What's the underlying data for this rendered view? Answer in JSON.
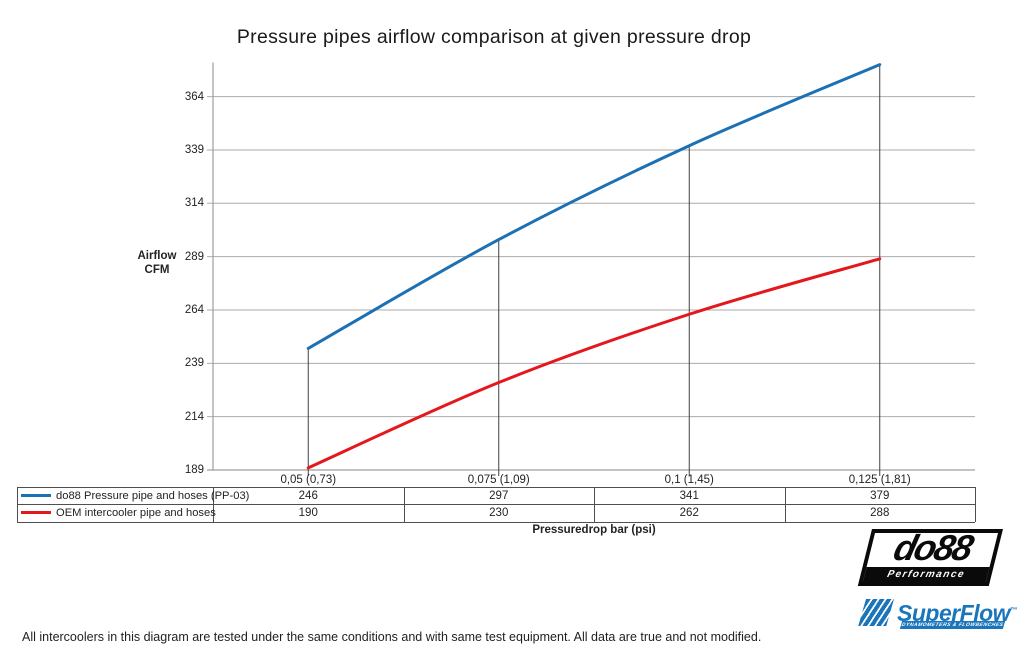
{
  "title": "Pressure pipes airflow comparison at given pressure drop",
  "chart_data": {
    "type": "line",
    "categories": [
      "0,05 (0,73)",
      "0,075 (1,09)",
      "0,1 (1,45)",
      "0,125 (1,81)"
    ],
    "series": [
      {
        "name": "do88 Pressure pipe and hoses (PP-03)",
        "color": "#1C70B4",
        "values": [
          246,
          297,
          341,
          379
        ]
      },
      {
        "name": "OEM intercooler pipe and hoses",
        "color": "#E4181C",
        "values": [
          190,
          230,
          262,
          288
        ]
      }
    ],
    "ylabel_line1": "Airflow",
    "ylabel_line2": "CFM",
    "xlabel": "Pressuredrop bar (psi)",
    "ylim": [
      189,
      380
    ],
    "yticks": [
      189,
      214,
      239,
      264,
      289,
      314,
      339,
      364
    ],
    "grid": true,
    "smooth_lines": true,
    "drop_lines": true,
    "legend_position": "table-left",
    "colors": {
      "grid": "#ababab",
      "axis": "#9d9d9d",
      "drop_line": "#404040",
      "table_border": "#4f4f4f"
    }
  },
  "footer": {
    "disclaimer": "All intercoolers in this diagram are tested under the same conditions and with same test equipment. All data are true and not modified."
  },
  "logos": {
    "do88": {
      "name": "do88",
      "tagline": "Performance"
    },
    "superflow": {
      "name": "SuperFlow",
      "tm": "™",
      "tagline": "DYNAMOMETERS & FLOWBENCHES"
    }
  }
}
